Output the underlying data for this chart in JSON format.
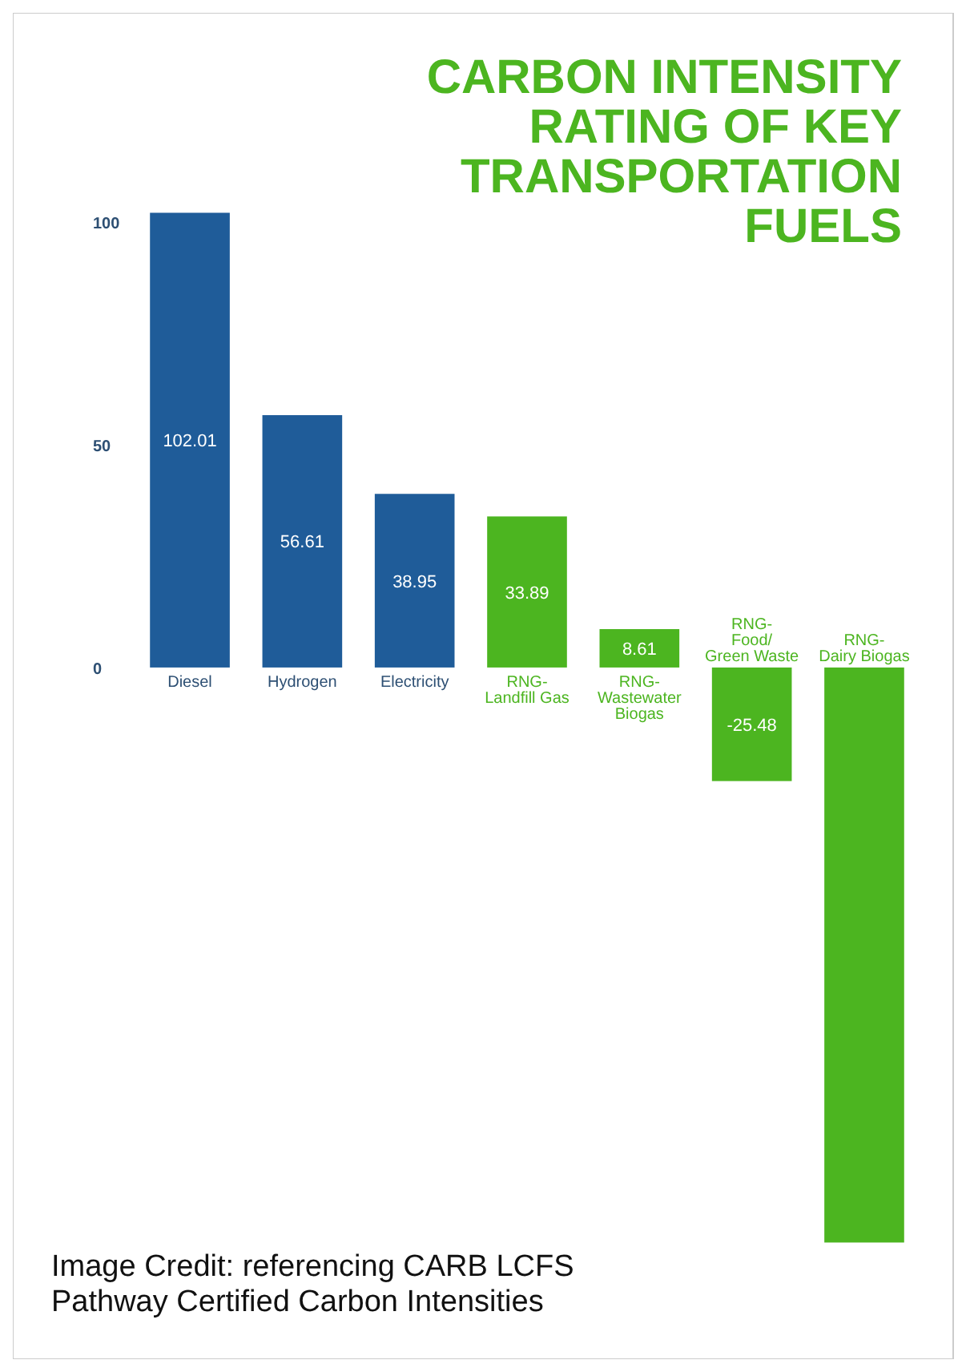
{
  "chart_data": {
    "type": "bar",
    "title": "CARBON INTENSITY RATING OF KEY TRANSPORTATION FUELS",
    "categories": [
      "Diesel",
      "Hydrogen",
      "Electricity",
      "RNG-Landfill Gas",
      "RNG-Wastewater Biogas",
      "RNG-Food/ Green Waste",
      "RNG-Dairy Biogas"
    ],
    "values": [
      102.01,
      56.61,
      38.95,
      33.89,
      8.61,
      -25.48,
      -129
    ],
    "value_labels": [
      "102.01",
      "56.61",
      "38.95",
      "33.89",
      "8.61",
      "-25.48",
      null
    ],
    "colors": [
      "#1f5c99",
      "#1f5c99",
      "#1f5c99",
      "#4cb520",
      "#4cb520",
      "#4cb520",
      "#4cb520"
    ],
    "ylim": [
      -130,
      103
    ],
    "yticks": [
      0,
      50,
      100
    ],
    "grid": false,
    "annotations": [
      "Image Credit: referencing CARB LCFS Pathway Certified Carbon Intensities"
    ]
  }
}
